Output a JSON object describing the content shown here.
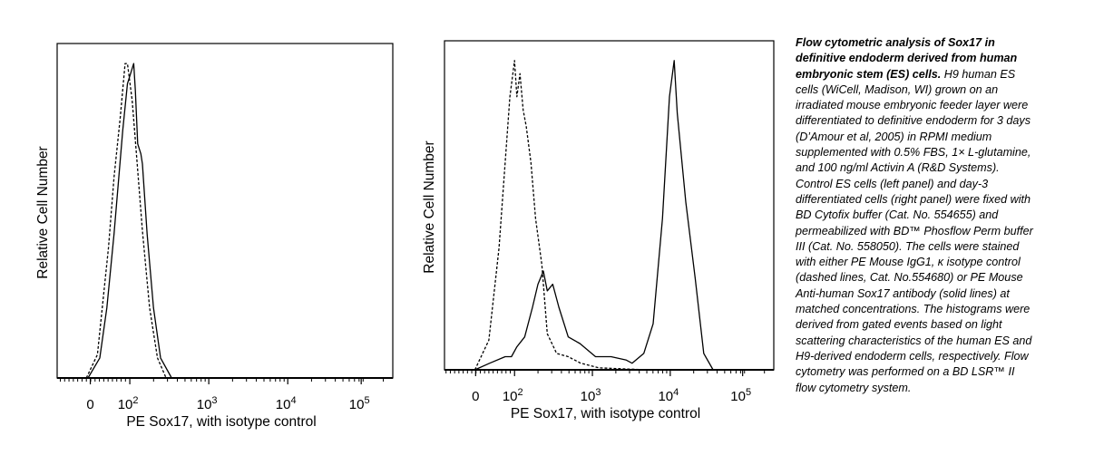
{
  "chart_data": [
    {
      "type": "line",
      "panel": "left",
      "description_label": "Control ES cells",
      "xlabel": "PE Sox17, with isotype control",
      "ylabel": "Relative Cell Number",
      "x_scale": "logicle (display decades)",
      "xlim": [
        1.08,
        5.33
      ],
      "ylim": [
        0,
        1
      ],
      "x_ticks": [
        {
          "base": "0",
          "exp": "",
          "pos": 1.5
        },
        {
          "base": "10",
          "exp": "2",
          "pos": 2
        },
        {
          "base": "10",
          "exp": "3",
          "pos": 3
        },
        {
          "base": "10",
          "exp": "4",
          "pos": 4
        },
        {
          "base": "10",
          "exp": "5",
          "pos": 4.93
        }
      ],
      "series": [
        {
          "name": "Sox17 antibody",
          "style": "solid",
          "points": [
            [
              1.47,
              0
            ],
            [
              1.62,
              0.06
            ],
            [
              1.71,
              0.21
            ],
            [
              1.8,
              0.43
            ],
            [
              1.91,
              0.74
            ],
            [
              1.97,
              0.88
            ],
            [
              2.05,
              0.94
            ],
            [
              2.07,
              0.86
            ],
            [
              2.1,
              0.7
            ],
            [
              2.14,
              0.67
            ],
            [
              2.16,
              0.64
            ],
            [
              2.22,
              0.43
            ],
            [
              2.3,
              0.21
            ],
            [
              2.39,
              0.06
            ],
            [
              2.53,
              0
            ]
          ]
        },
        {
          "name": "Isotype control",
          "style": "dashed",
          "points": [
            [
              1.45,
              0
            ],
            [
              1.59,
              0.07
            ],
            [
              1.73,
              0.39
            ],
            [
              1.8,
              0.6
            ],
            [
              1.88,
              0.78
            ],
            [
              1.94,
              0.94
            ],
            [
              1.97,
              0.94
            ],
            [
              2.03,
              0.83
            ],
            [
              2.08,
              0.68
            ],
            [
              2.16,
              0.44
            ],
            [
              2.25,
              0.21
            ],
            [
              2.35,
              0.06
            ],
            [
              2.46,
              0
            ]
          ]
        }
      ]
    },
    {
      "type": "line",
      "panel": "right",
      "description_label": "Day-3 differentiated cells",
      "xlabel": "PE Sox17, with isotype control",
      "ylabel": "Relative Cell Number",
      "x_scale": "logicle (display decades)",
      "xlim": [
        1.1,
        5.33
      ],
      "ylim": [
        0,
        1
      ],
      "x_ticks": [
        {
          "base": "0",
          "exp": "",
          "pos": 1.5
        },
        {
          "base": "10",
          "exp": "2",
          "pos": 2
        },
        {
          "base": "10",
          "exp": "3",
          "pos": 3
        },
        {
          "base": "10",
          "exp": "4",
          "pos": 4
        },
        {
          "base": "10",
          "exp": "5",
          "pos": 4.93
        }
      ],
      "series": [
        {
          "name": "Sox17 antibody",
          "style": "solid",
          "points": [
            [
              1.49,
              0
            ],
            [
              1.68,
              0.02
            ],
            [
              1.88,
              0.04
            ],
            [
              1.96,
              0.04
            ],
            [
              2.03,
              0.07
            ],
            [
              2.13,
              0.1
            ],
            [
              2.23,
              0.19
            ],
            [
              2.3,
              0.26
            ],
            [
              2.37,
              0.3
            ],
            [
              2.42,
              0.24
            ],
            [
              2.49,
              0.26
            ],
            [
              2.57,
              0.19
            ],
            [
              2.69,
              0.1
            ],
            [
              2.84,
              0.08
            ],
            [
              3.04,
              0.04
            ],
            [
              3.24,
              0.04
            ],
            [
              3.43,
              0.03
            ],
            [
              3.51,
              0.02
            ],
            [
              3.66,
              0.05
            ],
            [
              3.78,
              0.14
            ],
            [
              3.9,
              0.46
            ],
            [
              3.99,
              0.83
            ],
            [
              4.05,
              0.94
            ],
            [
              4.09,
              0.78
            ],
            [
              4.2,
              0.51
            ],
            [
              4.32,
              0.28
            ],
            [
              4.43,
              0.05
            ],
            [
              4.55,
              0
            ]
          ]
        },
        {
          "name": "Isotype control",
          "style": "dashed",
          "points": [
            [
              1.49,
              0
            ],
            [
              1.67,
              0.09
            ],
            [
              1.8,
              0.37
            ],
            [
              1.94,
              0.83
            ],
            [
              2.0,
              0.94
            ],
            [
              2.03,
              0.83
            ],
            [
              2.07,
              0.9
            ],
            [
              2.11,
              0.79
            ],
            [
              2.15,
              0.74
            ],
            [
              2.21,
              0.63
            ],
            [
              2.27,
              0.46
            ],
            [
              2.35,
              0.32
            ],
            [
              2.42,
              0.11
            ],
            [
              2.54,
              0.05
            ],
            [
              2.69,
              0.04
            ],
            [
              2.85,
              0.02
            ],
            [
              3.08,
              0.006
            ],
            [
              3.7,
              0
            ],
            [
              4.56,
              0
            ]
          ]
        }
      ]
    }
  ],
  "caption": {
    "title": "Flow cytometric analysis of Sox17 in definitive endoderm derived from human embryonic stem (ES) cells.",
    "body": " H9 human ES cells (WiCell, Madison, WI) grown on an irradiated mouse embryonic feeder layer were differentiated to definitive endoderm for 3 days (D’Amour et al, 2005) in RPMI medium supplemented with 0.5% FBS, 1× L-glutamine, and 100 ng/ml Activin A (R&D Systems). Control ES cells (left panel) and day-3 differentiated cells (right panel) were fixed with BD Cytofix buffer (Cat. No. 554655) and permeabilized with BD™ Phosflow Perm buffer III (Cat. No. 558050). The cells were stained with either PE Mouse IgG1, κ isotype control (dashed lines, Cat. No.554680) or PE Mouse Anti-human Sox17 antibody (solid lines) at matched concentrations. The histograms were derived from gated events based on light scattering characteristics of the human ES and H9-derived endoderm cells, respectively. Flow cytometry was performed on a BD LSR™ II flow cytometry system."
  }
}
